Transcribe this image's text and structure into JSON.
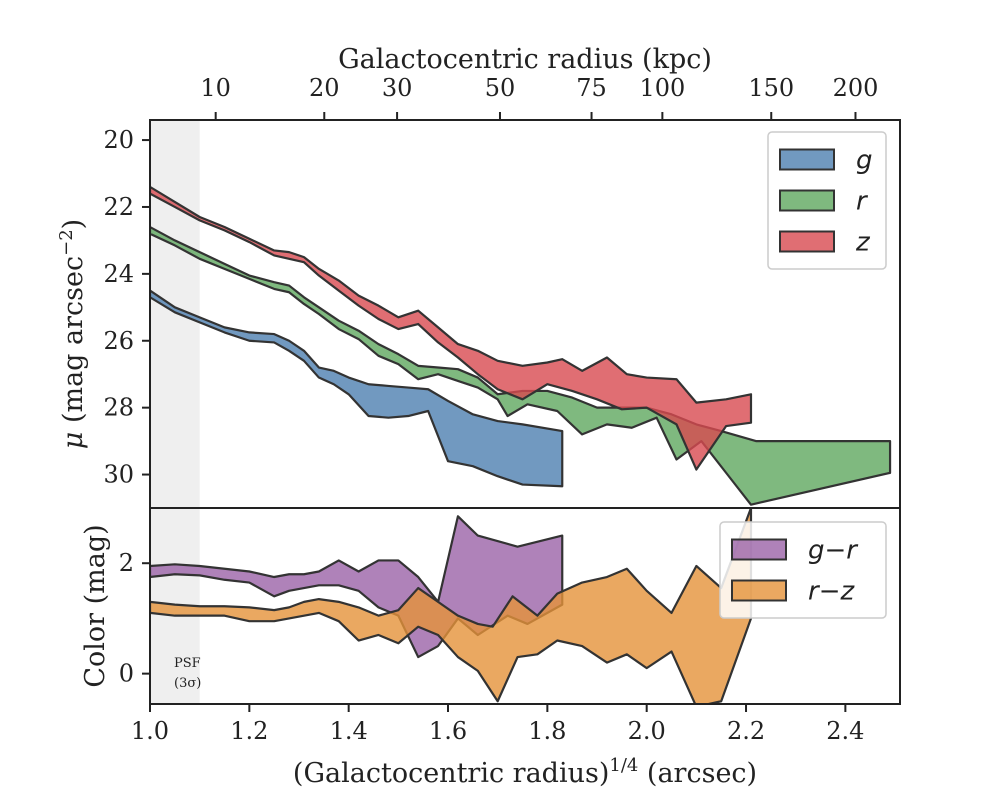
{
  "chart_data": [
    {
      "type": "area",
      "panel": "surface-brightness",
      "top_xlabel": "Galactocentric radius (kpc)",
      "top_ticks": [
        {
          "kpc": 10,
          "label": "10"
        },
        {
          "kpc": 20,
          "label": "20"
        },
        {
          "kpc": 30,
          "label": "30"
        },
        {
          "kpc": 50,
          "label": "50"
        },
        {
          "kpc": 75,
          "label": "75"
        },
        {
          "kpc": 100,
          "label": "100"
        },
        {
          "kpc": 150,
          "label": "150"
        },
        {
          "kpc": 200,
          "label": "200"
        }
      ],
      "ylabel_parts": {
        "mu": "μ",
        "body": " (mag arcsec",
        "sup": "−2",
        "close": ")"
      },
      "ylim": [
        31.0,
        19.4
      ],
      "yticks": [
        20,
        22,
        24,
        26,
        28,
        30
      ],
      "ytick_labels": [
        "20",
        "22",
        "24",
        "26",
        "28",
        "30"
      ],
      "legend_position": "top-right",
      "series": [
        {
          "name": "g",
          "color": "#4e7fb0",
          "upper": [
            [
              1.0,
              24.5
            ],
            [
              1.05,
              25.0
            ],
            [
              1.1,
              25.3
            ],
            [
              1.15,
              25.6
            ],
            [
              1.2,
              25.75
            ],
            [
              1.25,
              25.8
            ],
            [
              1.28,
              26.0
            ],
            [
              1.31,
              26.3
            ],
            [
              1.34,
              26.8
            ],
            [
              1.37,
              26.9
            ],
            [
              1.4,
              27.1
            ],
            [
              1.44,
              27.3
            ],
            [
              1.48,
              27.35
            ],
            [
              1.52,
              27.4
            ],
            [
              1.56,
              27.45
            ],
            [
              1.6,
              27.8
            ],
            [
              1.65,
              28.2
            ],
            [
              1.7,
              28.4
            ],
            [
              1.75,
              28.5
            ],
            [
              1.83,
              28.7
            ]
          ],
          "lower": [
            [
              1.0,
              24.7
            ],
            [
              1.05,
              25.15
            ],
            [
              1.1,
              25.45
            ],
            [
              1.15,
              25.75
            ],
            [
              1.2,
              26.0
            ],
            [
              1.25,
              26.05
            ],
            [
              1.28,
              26.3
            ],
            [
              1.31,
              26.6
            ],
            [
              1.34,
              27.1
            ],
            [
              1.37,
              27.3
            ],
            [
              1.4,
              27.6
            ],
            [
              1.44,
              28.25
            ],
            [
              1.48,
              28.3
            ],
            [
              1.52,
              28.25
            ],
            [
              1.56,
              28.1
            ],
            [
              1.6,
              29.6
            ],
            [
              1.65,
              29.75
            ],
            [
              1.7,
              30.05
            ],
            [
              1.75,
              30.3
            ],
            [
              1.83,
              30.35
            ]
          ]
        },
        {
          "name": "r",
          "color": "#5fa75f",
          "upper": [
            [
              1.0,
              22.6
            ],
            [
              1.05,
              23.0
            ],
            [
              1.1,
              23.35
            ],
            [
              1.15,
              23.7
            ],
            [
              1.2,
              24.05
            ],
            [
              1.25,
              24.25
            ],
            [
              1.28,
              24.35
            ],
            [
              1.31,
              24.7
            ],
            [
              1.34,
              25.0
            ],
            [
              1.38,
              25.4
            ],
            [
              1.42,
              25.7
            ],
            [
              1.46,
              26.1
            ],
            [
              1.5,
              26.4
            ],
            [
              1.54,
              26.75
            ],
            [
              1.58,
              26.8
            ],
            [
              1.62,
              26.85
            ],
            [
              1.66,
              27.1
            ],
            [
              1.7,
              27.6
            ],
            [
              1.75,
              27.5
            ],
            [
              1.8,
              27.5
            ],
            [
              1.85,
              27.7
            ],
            [
              1.9,
              28.0
            ],
            [
              1.95,
              28.0
            ],
            [
              2.0,
              28.0
            ],
            [
              2.05,
              28.2
            ],
            [
              2.1,
              28.5
            ],
            [
              2.15,
              28.7
            ],
            [
              2.22,
              29.0
            ],
            [
              2.49,
              29.0
            ]
          ],
          "lower": [
            [
              1.0,
              22.8
            ],
            [
              1.05,
              23.15
            ],
            [
              1.1,
              23.55
            ],
            [
              1.15,
              23.85
            ],
            [
              1.2,
              24.15
            ],
            [
              1.25,
              24.45
            ],
            [
              1.28,
              24.55
            ],
            [
              1.31,
              24.9
            ],
            [
              1.34,
              25.2
            ],
            [
              1.38,
              25.65
            ],
            [
              1.42,
              25.95
            ],
            [
              1.46,
              26.45
            ],
            [
              1.5,
              26.7
            ],
            [
              1.54,
              27.15
            ],
            [
              1.58,
              27.0
            ],
            [
              1.62,
              27.2
            ],
            [
              1.66,
              27.4
            ],
            [
              1.7,
              27.75
            ],
            [
              1.72,
              28.25
            ],
            [
              1.76,
              27.9
            ],
            [
              1.82,
              28.1
            ],
            [
              1.87,
              28.8
            ],
            [
              1.92,
              28.5
            ],
            [
              1.97,
              28.6
            ],
            [
              2.02,
              28.3
            ],
            [
              2.06,
              29.55
            ],
            [
              2.11,
              29.0
            ],
            [
              2.16,
              29.95
            ],
            [
              2.21,
              30.9
            ],
            [
              2.49,
              29.95
            ]
          ]
        },
        {
          "name": "z",
          "color": "#d84a50",
          "upper": [
            [
              1.0,
              21.4
            ],
            [
              1.05,
              21.85
            ],
            [
              1.1,
              22.3
            ],
            [
              1.15,
              22.6
            ],
            [
              1.2,
              22.95
            ],
            [
              1.25,
              23.3
            ],
            [
              1.28,
              23.35
            ],
            [
              1.31,
              23.5
            ],
            [
              1.34,
              23.85
            ],
            [
              1.38,
              24.2
            ],
            [
              1.42,
              24.65
            ],
            [
              1.46,
              24.95
            ],
            [
              1.5,
              25.3
            ],
            [
              1.54,
              25.1
            ],
            [
              1.58,
              25.6
            ],
            [
              1.62,
              26.1
            ],
            [
              1.66,
              26.3
            ],
            [
              1.7,
              26.6
            ],
            [
              1.75,
              26.75
            ],
            [
              1.8,
              26.65
            ],
            [
              1.83,
              26.55
            ],
            [
              1.87,
              26.9
            ],
            [
              1.92,
              26.5
            ],
            [
              1.96,
              27.0
            ],
            [
              2.0,
              27.1
            ],
            [
              2.06,
              27.15
            ],
            [
              2.1,
              27.85
            ],
            [
              2.16,
              27.75
            ],
            [
              2.21,
              27.6
            ]
          ],
          "lower": [
            [
              1.0,
              21.6
            ],
            [
              1.05,
              22.0
            ],
            [
              1.1,
              22.4
            ],
            [
              1.15,
              22.7
            ],
            [
              1.2,
              23.05
            ],
            [
              1.25,
              23.45
            ],
            [
              1.28,
              23.55
            ],
            [
              1.31,
              23.65
            ],
            [
              1.34,
              24.05
            ],
            [
              1.38,
              24.5
            ],
            [
              1.42,
              24.95
            ],
            [
              1.46,
              25.35
            ],
            [
              1.5,
              25.65
            ],
            [
              1.54,
              25.5
            ],
            [
              1.58,
              26.05
            ],
            [
              1.62,
              26.5
            ],
            [
              1.66,
              27.0
            ],
            [
              1.7,
              27.45
            ],
            [
              1.75,
              27.75
            ],
            [
              1.8,
              27.3
            ],
            [
              1.85,
              27.5
            ],
            [
              1.9,
              27.75
            ],
            [
              1.95,
              28.05
            ],
            [
              2.0,
              28.0
            ],
            [
              2.06,
              28.5
            ],
            [
              2.1,
              29.85
            ],
            [
              2.16,
              28.55
            ],
            [
              2.21,
              28.45
            ]
          ]
        }
      ]
    },
    {
      "type": "area",
      "panel": "color",
      "ylabel": "Color (mag)",
      "ylim": [
        -0.55,
        3.0
      ],
      "yticks": [
        0,
        2
      ],
      "ytick_labels": [
        "0",
        "2"
      ],
      "xlabel_parts": {
        "body": "(Galactocentric radius)",
        "sup": "1/4",
        "close": " (arcsec)"
      },
      "xlim": [
        1.0,
        2.51
      ],
      "xticks": [
        1.0,
        1.2,
        1.4,
        1.6,
        1.8,
        2.0,
        2.2,
        2.4
      ],
      "xtick_labels": [
        "1.0",
        "1.2",
        "1.4",
        "1.6",
        "1.8",
        "2.0",
        "2.2",
        "2.4"
      ],
      "psf_region": {
        "x_end": 1.1,
        "label_line1": "PSF",
        "label_line2": "(3σ)"
      },
      "legend_position": "top-right",
      "series": [
        {
          "name": "g−r",
          "color": "#9b63a8",
          "upper": [
            [
              1.0,
              1.95
            ],
            [
              1.05,
              1.98
            ],
            [
              1.1,
              1.95
            ],
            [
              1.15,
              1.9
            ],
            [
              1.2,
              1.85
            ],
            [
              1.25,
              1.75
            ],
            [
              1.28,
              1.8
            ],
            [
              1.31,
              1.8
            ],
            [
              1.34,
              1.85
            ],
            [
              1.38,
              2.05
            ],
            [
              1.42,
              1.85
            ],
            [
              1.46,
              2.05
            ],
            [
              1.5,
              2.05
            ],
            [
              1.54,
              1.75
            ],
            [
              1.58,
              1.3
            ],
            [
              1.62,
              2.85
            ],
            [
              1.66,
              2.5
            ],
            [
              1.74,
              2.3
            ],
            [
              1.83,
              2.5
            ]
          ],
          "lower": [
            [
              1.0,
              1.75
            ],
            [
              1.05,
              1.8
            ],
            [
              1.1,
              1.78
            ],
            [
              1.15,
              1.7
            ],
            [
              1.2,
              1.65
            ],
            [
              1.25,
              1.4
            ],
            [
              1.28,
              1.5
            ],
            [
              1.31,
              1.55
            ],
            [
              1.34,
              1.6
            ],
            [
              1.38,
              1.6
            ],
            [
              1.42,
              1.5
            ],
            [
              1.46,
              1.2
            ],
            [
              1.5,
              1.05
            ],
            [
              1.54,
              0.3
            ],
            [
              1.58,
              0.5
            ],
            [
              1.62,
              1.0
            ],
            [
              1.66,
              0.7
            ],
            [
              1.72,
              1.05
            ],
            [
              1.76,
              0.9
            ],
            [
              1.83,
              1.25
            ]
          ]
        },
        {
          "name": "r−z",
          "color": "#e5923a",
          "upper": [
            [
              1.0,
              1.3
            ],
            [
              1.05,
              1.25
            ],
            [
              1.1,
              1.22
            ],
            [
              1.15,
              1.22
            ],
            [
              1.2,
              1.2
            ],
            [
              1.25,
              1.15
            ],
            [
              1.28,
              1.2
            ],
            [
              1.31,
              1.3
            ],
            [
              1.34,
              1.35
            ],
            [
              1.38,
              1.3
            ],
            [
              1.42,
              1.2
            ],
            [
              1.46,
              1.05
            ],
            [
              1.5,
              1.15
            ],
            [
              1.54,
              1.55
            ],
            [
              1.58,
              1.3
            ],
            [
              1.62,
              1.05
            ],
            [
              1.66,
              0.9
            ],
            [
              1.69,
              0.85
            ],
            [
              1.73,
              1.4
            ],
            [
              1.78,
              1.05
            ],
            [
              1.82,
              1.45
            ],
            [
              1.87,
              1.65
            ],
            [
              1.92,
              1.75
            ],
            [
              1.96,
              1.9
            ],
            [
              2.0,
              1.5
            ],
            [
              2.05,
              1.1
            ],
            [
              2.1,
              1.95
            ],
            [
              2.15,
              1.55
            ],
            [
              2.21,
              3.0
            ]
          ],
          "lower": [
            [
              1.0,
              1.1
            ],
            [
              1.05,
              1.05
            ],
            [
              1.1,
              1.05
            ],
            [
              1.15,
              1.05
            ],
            [
              1.2,
              0.95
            ],
            [
              1.25,
              0.95
            ],
            [
              1.28,
              1.0
            ],
            [
              1.31,
              1.05
            ],
            [
              1.34,
              1.1
            ],
            [
              1.38,
              0.95
            ],
            [
              1.42,
              0.6
            ],
            [
              1.46,
              0.7
            ],
            [
              1.5,
              0.55
            ],
            [
              1.54,
              0.85
            ],
            [
              1.58,
              0.7
            ],
            [
              1.62,
              0.3
            ],
            [
              1.66,
              0.05
            ],
            [
              1.7,
              -0.5
            ],
            [
              1.74,
              0.3
            ],
            [
              1.78,
              0.35
            ],
            [
              1.82,
              0.6
            ],
            [
              1.87,
              0.5
            ],
            [
              1.92,
              0.2
            ],
            [
              1.96,
              0.35
            ],
            [
              2.0,
              0.1
            ],
            [
              2.05,
              0.4
            ],
            [
              2.1,
              -0.6
            ],
            [
              2.15,
              -0.5
            ],
            [
              2.21,
              1.0
            ]
          ]
        }
      ]
    }
  ]
}
